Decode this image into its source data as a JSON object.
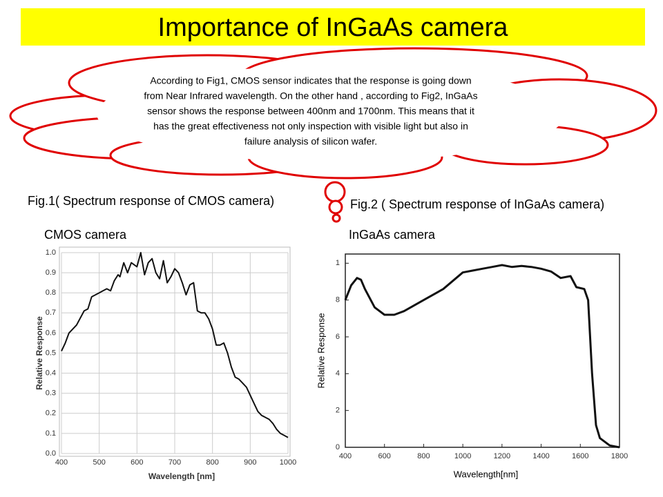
{
  "title": "Importance of InGaAs camera",
  "cloud_text": [
    "According to Fig1, CMOS sensor indicates that the response is going down",
    "from Near Infrared wavelength. On the other hand , according to Fig2, InGaAs",
    "sensor shows the response between 400nm and 1700nm. This means that it",
    "has the great effectiveness not only inspection with visible light but also in",
    "failure analysis of silicon wafer."
  ],
  "fig1_caption": "Fig.1( Spectrum response of CMOS camera)",
  "fig2_caption": "Fig.2 ( Spectrum response of InGaAs camera)",
  "chart_data": [
    {
      "type": "line",
      "title": "CMOS camera",
      "xlabel": "Wavelength [nm]",
      "ylabel": "Relative Response",
      "color": "#111111",
      "grid": true,
      "x": [
        400,
        410,
        420,
        440,
        460,
        470,
        480,
        500,
        510,
        520,
        530,
        540,
        550,
        555,
        565,
        575,
        585,
        600,
        610,
        620,
        630,
        640,
        650,
        660,
        670,
        680,
        690,
        700,
        710,
        720,
        730,
        740,
        750,
        760,
        770,
        780,
        790,
        800,
        810,
        820,
        830,
        840,
        850,
        860,
        870,
        880,
        890,
        900,
        910,
        920,
        930,
        940,
        950,
        960,
        970,
        980,
        990,
        1000
      ],
      "values": [
        0.51,
        0.55,
        0.6,
        0.64,
        0.71,
        0.72,
        0.78,
        0.8,
        0.81,
        0.82,
        0.81,
        0.86,
        0.89,
        0.88,
        0.95,
        0.9,
        0.95,
        0.93,
        1.0,
        0.89,
        0.95,
        0.97,
        0.9,
        0.87,
        0.96,
        0.85,
        0.88,
        0.92,
        0.9,
        0.85,
        0.79,
        0.84,
        0.85,
        0.71,
        0.7,
        0.7,
        0.67,
        0.62,
        0.54,
        0.54,
        0.55,
        0.5,
        0.43,
        0.38,
        0.37,
        0.35,
        0.33,
        0.29,
        0.25,
        0.21,
        0.19,
        0.18,
        0.17,
        0.15,
        0.12,
        0.1,
        0.09,
        0.08
      ],
      "xlim": [
        400,
        1000
      ],
      "ylim": [
        0,
        1.0
      ],
      "xticks": [
        400,
        500,
        600,
        700,
        800,
        900,
        1000
      ],
      "yticks": [
        {
          "value": 0,
          "label": "0.0"
        },
        0.1,
        0.2,
        0.3,
        0.4,
        0.5,
        0.6,
        0.7,
        0.8,
        0.9,
        {
          "value": 1.0,
          "label": "1.0"
        }
      ]
    },
    {
      "type": "line",
      "title": "InGaAs camera",
      "xlabel": "Wavelength[nm]",
      "ylabel": "Relative Response",
      "color": "#111111",
      "grid": false,
      "x": [
        400,
        430,
        460,
        480,
        500,
        550,
        600,
        650,
        700,
        800,
        900,
        1000,
        1050,
        1100,
        1150,
        1200,
        1250,
        1300,
        1350,
        1400,
        1450,
        1500,
        1550,
        1580,
        1620,
        1640,
        1660,
        1680,
        1700,
        1750,
        1800
      ],
      "values": [
        0.8,
        0.88,
        0.92,
        0.91,
        0.86,
        0.76,
        0.72,
        0.72,
        0.74,
        0.8,
        0.86,
        0.95,
        0.96,
        0.97,
        0.98,
        0.99,
        0.98,
        0.985,
        0.98,
        0.97,
        0.955,
        0.92,
        0.93,
        0.87,
        0.86,
        0.8,
        0.4,
        0.12,
        0.05,
        0.01,
        0.0
      ],
      "xlim": [
        400,
        1800
      ],
      "ylim": [
        0,
        1.05
      ],
      "xticks": [
        400,
        600,
        800,
        1000,
        1200,
        1400,
        1600,
        1800
      ],
      "yticks": [
        0,
        {
          "value": 0.2,
          "label": "2"
        },
        {
          "value": 0.4,
          "label": "4"
        },
        {
          "value": 0.6,
          "label": "6"
        },
        {
          "value": 0.8,
          "label": "8"
        },
        {
          "value": 1.0,
          "label": "1"
        }
      ]
    }
  ]
}
